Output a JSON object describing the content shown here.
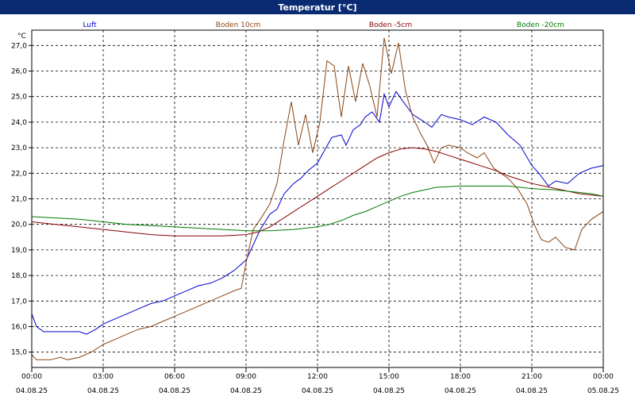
{
  "window": {
    "title": "Temperatur [°C]"
  },
  "chart_data": {
    "type": "line",
    "title": "Temperatur [°C]",
    "ylabel": "°C",
    "ylim": [
      14.4,
      27.6
    ],
    "xlim": [
      0,
      24
    ],
    "y_ticks": [
      15.0,
      16.0,
      17.0,
      18.0,
      19.0,
      20.0,
      21.0,
      22.0,
      23.0,
      24.0,
      25.0,
      26.0,
      27.0
    ],
    "y_tick_labels": [
      "15,0",
      "16,0",
      "17,0",
      "18,0",
      "19,0",
      "20,0",
      "21,0",
      "22,0",
      "23,0",
      "24,0",
      "25,0",
      "26,0",
      "27,0"
    ],
    "x_ticks": [
      0,
      3,
      6,
      9,
      12,
      15,
      18,
      21,
      24
    ],
    "x_tick_times": [
      "00:00",
      "03:00",
      "06:00",
      "09:00",
      "12:00",
      "15:00",
      "18:00",
      "21:00",
      "00:00"
    ],
    "x_tick_dates": [
      "04.08.25",
      "04.08.25",
      "04.08.25",
      "04.08.25",
      "04.08.25",
      "04.08.25",
      "04.08.25",
      "04.08.25",
      "05.08.25"
    ],
    "grid": true,
    "legend_position": "top",
    "series": [
      {
        "name": "Luft",
        "color": "#0000cc",
        "points": [
          [
            0,
            16.5
          ],
          [
            0.2,
            16.0
          ],
          [
            0.5,
            15.8
          ],
          [
            1.0,
            15.8
          ],
          [
            1.5,
            15.8
          ],
          [
            2.0,
            15.8
          ],
          [
            2.3,
            15.7
          ],
          [
            2.7,
            15.9
          ],
          [
            3.0,
            16.1
          ],
          [
            3.5,
            16.3
          ],
          [
            4.0,
            16.5
          ],
          [
            4.5,
            16.7
          ],
          [
            5.0,
            16.9
          ],
          [
            5.5,
            17.0
          ],
          [
            6.0,
            17.2
          ],
          [
            6.5,
            17.4
          ],
          [
            7.0,
            17.6
          ],
          [
            7.5,
            17.7
          ],
          [
            8.0,
            17.9
          ],
          [
            8.5,
            18.2
          ],
          [
            9.0,
            18.6
          ],
          [
            9.3,
            19.2
          ],
          [
            9.6,
            19.8
          ],
          [
            10.0,
            20.4
          ],
          [
            10.3,
            20.6
          ],
          [
            10.6,
            21.2
          ],
          [
            11.0,
            21.6
          ],
          [
            11.3,
            21.8
          ],
          [
            11.6,
            22.1
          ],
          [
            12.0,
            22.4
          ],
          [
            12.3,
            22.9
          ],
          [
            12.6,
            23.4
          ],
          [
            13.0,
            23.5
          ],
          [
            13.2,
            23.1
          ],
          [
            13.5,
            23.7
          ],
          [
            13.8,
            23.9
          ],
          [
            14.0,
            24.2
          ],
          [
            14.3,
            24.4
          ],
          [
            14.6,
            24.0
          ],
          [
            14.8,
            25.1
          ],
          [
            15.0,
            24.6
          ],
          [
            15.3,
            25.2
          ],
          [
            15.6,
            24.8
          ],
          [
            16.0,
            24.3
          ],
          [
            16.5,
            24.0
          ],
          [
            16.8,
            23.8
          ],
          [
            17.2,
            24.3
          ],
          [
            17.5,
            24.2
          ],
          [
            18.0,
            24.1
          ],
          [
            18.5,
            23.9
          ],
          [
            19.0,
            24.2
          ],
          [
            19.5,
            24.0
          ],
          [
            20.0,
            23.5
          ],
          [
            20.5,
            23.1
          ],
          [
            21.0,
            22.3
          ],
          [
            21.3,
            22.0
          ],
          [
            21.7,
            21.5
          ],
          [
            22.0,
            21.7
          ],
          [
            22.5,
            21.6
          ],
          [
            23.0,
            22.0
          ],
          [
            23.5,
            22.2
          ],
          [
            24.0,
            22.3
          ]
        ]
      },
      {
        "name": "Boden 10cm",
        "color": "#8b4513",
        "points": [
          [
            0,
            14.9
          ],
          [
            0.2,
            14.7
          ],
          [
            0.8,
            14.7
          ],
          [
            1.2,
            14.8
          ],
          [
            1.5,
            14.7
          ],
          [
            2.0,
            14.8
          ],
          [
            2.5,
            15.0
          ],
          [
            3.0,
            15.3
          ],
          [
            3.5,
            15.5
          ],
          [
            4.0,
            15.7
          ],
          [
            4.5,
            15.9
          ],
          [
            5.0,
            16.0
          ],
          [
            5.5,
            16.2
          ],
          [
            6.0,
            16.4
          ],
          [
            6.5,
            16.6
          ],
          [
            7.0,
            16.8
          ],
          [
            7.5,
            17.0
          ],
          [
            8.0,
            17.2
          ],
          [
            8.5,
            17.4
          ],
          [
            8.8,
            17.5
          ],
          [
            9.0,
            18.5
          ],
          [
            9.3,
            19.8
          ],
          [
            9.6,
            20.2
          ],
          [
            10.0,
            20.8
          ],
          [
            10.3,
            21.6
          ],
          [
            10.6,
            23.3
          ],
          [
            10.9,
            24.8
          ],
          [
            11.2,
            23.1
          ],
          [
            11.5,
            24.3
          ],
          [
            11.8,
            22.8
          ],
          [
            12.1,
            24.0
          ],
          [
            12.4,
            26.4
          ],
          [
            12.7,
            26.2
          ],
          [
            13.0,
            24.2
          ],
          [
            13.3,
            26.2
          ],
          [
            13.6,
            24.8
          ],
          [
            13.9,
            26.3
          ],
          [
            14.2,
            25.4
          ],
          [
            14.5,
            24.2
          ],
          [
            14.8,
            27.3
          ],
          [
            15.1,
            25.9
          ],
          [
            15.4,
            27.1
          ],
          [
            15.7,
            25.2
          ],
          [
            16.0,
            24.2
          ],
          [
            16.3,
            23.6
          ],
          [
            16.6,
            23.1
          ],
          [
            16.9,
            22.4
          ],
          [
            17.2,
            23.0
          ],
          [
            17.5,
            23.1
          ],
          [
            18.0,
            23.0
          ],
          [
            18.3,
            22.8
          ],
          [
            18.7,
            22.6
          ],
          [
            19.0,
            22.8
          ],
          [
            19.4,
            22.2
          ],
          [
            19.7,
            22.0
          ],
          [
            20.0,
            21.8
          ],
          [
            20.4,
            21.4
          ],
          [
            20.8,
            20.8
          ],
          [
            21.1,
            20.0
          ],
          [
            21.4,
            19.4
          ],
          [
            21.7,
            19.3
          ],
          [
            22.0,
            19.5
          ],
          [
            22.4,
            19.1
          ],
          [
            22.8,
            19.0
          ],
          [
            23.1,
            19.8
          ],
          [
            23.5,
            20.2
          ],
          [
            24.0,
            20.5
          ]
        ]
      },
      {
        "name": "Boden -5cm",
        "color": "#8b0000",
        "points": [
          [
            0,
            20.1
          ],
          [
            1.0,
            20.0
          ],
          [
            2.0,
            19.9
          ],
          [
            3.0,
            19.8
          ],
          [
            4.0,
            19.7
          ],
          [
            5.0,
            19.6
          ],
          [
            6.0,
            19.55
          ],
          [
            7.0,
            19.55
          ],
          [
            8.0,
            19.55
          ],
          [
            9.0,
            19.6
          ],
          [
            9.5,
            19.7
          ],
          [
            10.0,
            19.9
          ],
          [
            10.5,
            20.2
          ],
          [
            11.0,
            20.5
          ],
          [
            11.5,
            20.8
          ],
          [
            12.0,
            21.1
          ],
          [
            12.5,
            21.4
          ],
          [
            13.0,
            21.7
          ],
          [
            13.5,
            22.0
          ],
          [
            14.0,
            22.3
          ],
          [
            14.5,
            22.6
          ],
          [
            15.0,
            22.8
          ],
          [
            15.5,
            22.95
          ],
          [
            16.0,
            23.0
          ],
          [
            16.5,
            22.95
          ],
          [
            17.0,
            22.85
          ],
          [
            17.5,
            22.7
          ],
          [
            18.0,
            22.55
          ],
          [
            18.5,
            22.4
          ],
          [
            19.0,
            22.25
          ],
          [
            19.5,
            22.1
          ],
          [
            20.0,
            21.9
          ],
          [
            20.5,
            21.75
          ],
          [
            21.0,
            21.6
          ],
          [
            21.5,
            21.5
          ],
          [
            22.0,
            21.4
          ],
          [
            22.5,
            21.3
          ],
          [
            23.0,
            21.2
          ],
          [
            23.5,
            21.15
          ],
          [
            24.0,
            21.1
          ]
        ]
      },
      {
        "name": "Boden -20cm",
        "color": "#007a00",
        "points": [
          [
            0,
            20.3
          ],
          [
            1.0,
            20.25
          ],
          [
            2.0,
            20.2
          ],
          [
            3.0,
            20.1
          ],
          [
            4.0,
            20.0
          ],
          [
            5.0,
            19.95
          ],
          [
            6.0,
            19.9
          ],
          [
            7.0,
            19.85
          ],
          [
            8.0,
            19.8
          ],
          [
            9.0,
            19.75
          ],
          [
            10.0,
            19.75
          ],
          [
            11.0,
            19.8
          ],
          [
            12.0,
            19.9
          ],
          [
            12.5,
            20.0
          ],
          [
            13.0,
            20.15
          ],
          [
            13.5,
            20.35
          ],
          [
            14.0,
            20.5
          ],
          [
            14.5,
            20.7
          ],
          [
            15.0,
            20.9
          ],
          [
            15.5,
            21.1
          ],
          [
            16.0,
            21.25
          ],
          [
            16.5,
            21.35
          ],
          [
            17.0,
            21.45
          ],
          [
            18.0,
            21.5
          ],
          [
            19.0,
            21.5
          ],
          [
            20.0,
            21.5
          ],
          [
            20.5,
            21.45
          ],
          [
            21.0,
            21.4
          ],
          [
            22.0,
            21.35
          ],
          [
            23.0,
            21.25
          ],
          [
            23.5,
            21.2
          ],
          [
            24.0,
            21.1
          ]
        ]
      }
    ]
  }
}
